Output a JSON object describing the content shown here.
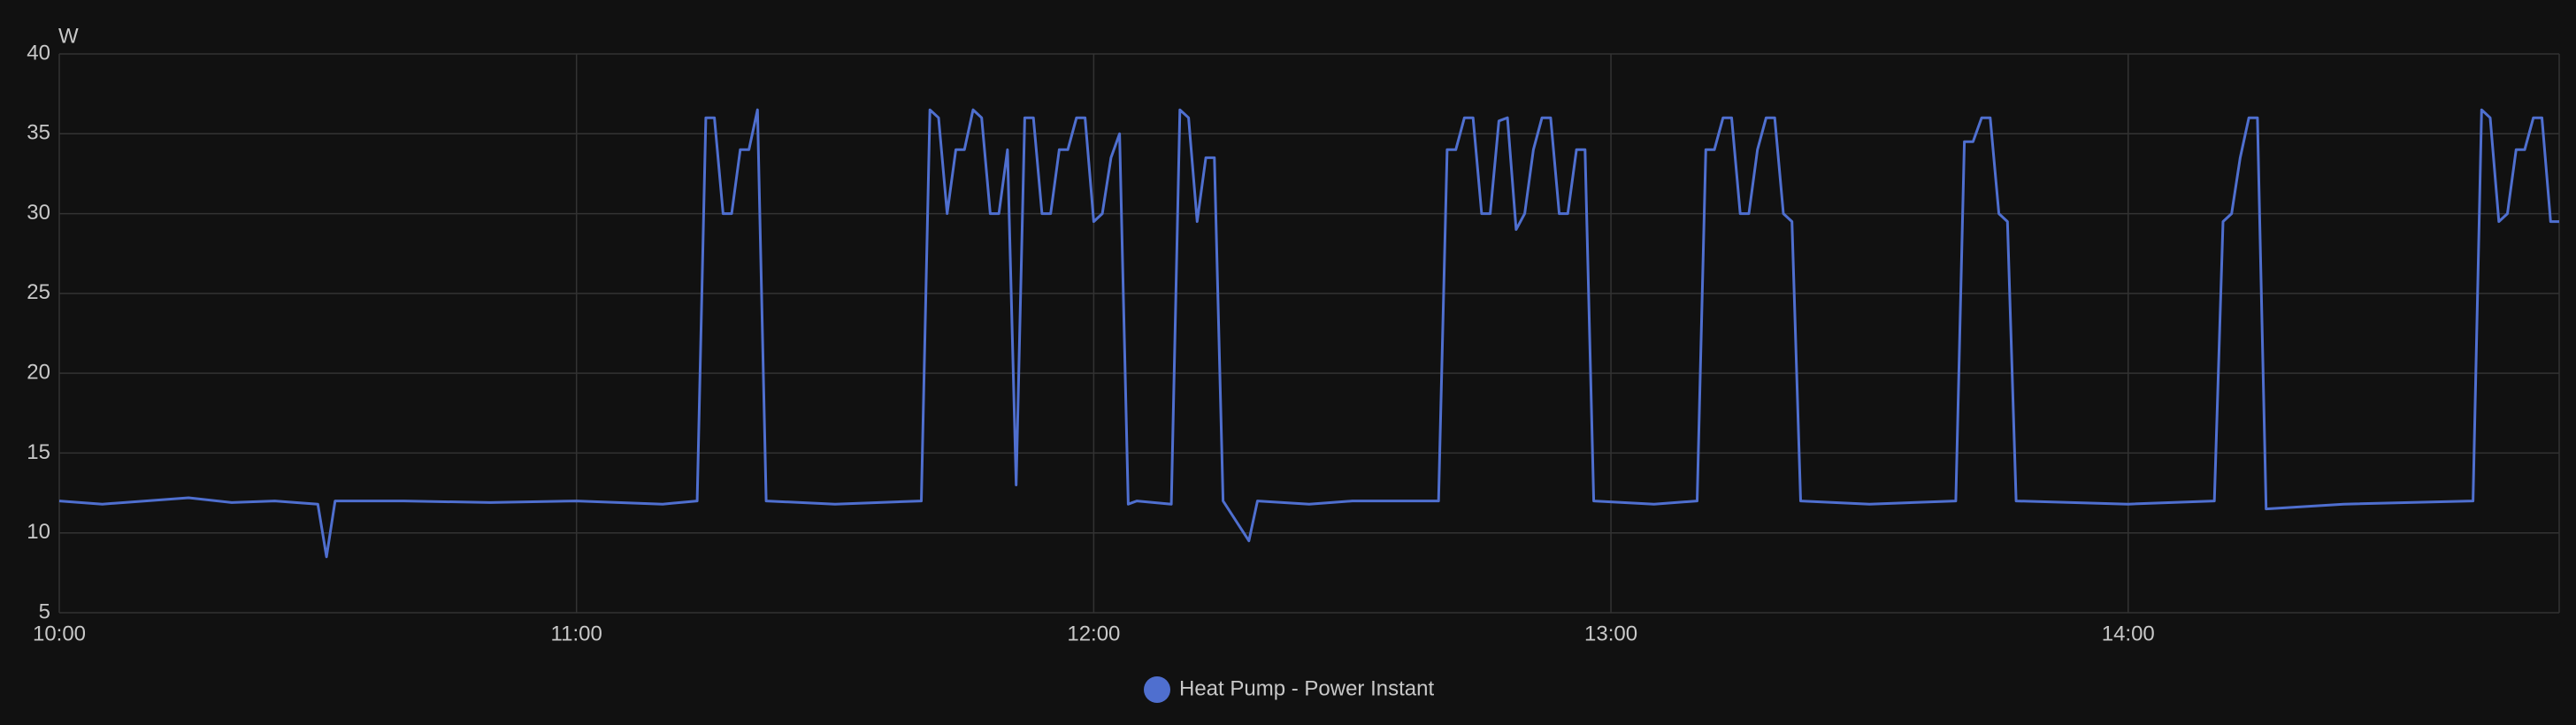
{
  "chart_data": {
    "type": "line",
    "y_unit": "W",
    "x": [
      "10:00",
      "10:05",
      "10:10",
      "10:15",
      "10:20",
      "10:25",
      "10:30",
      "10:31",
      "10:32",
      "10:40",
      "10:50",
      "11:00",
      "11:10",
      "11:14",
      "11:15",
      "11:16",
      "11:17",
      "11:18",
      "11:19",
      "11:20",
      "11:21",
      "11:22",
      "11:30",
      "11:40",
      "11:41",
      "11:42",
      "11:43",
      "11:44",
      "11:45",
      "11:46",
      "11:47",
      "11:48",
      "11:49",
      "11:50",
      "11:51",
      "11:52",
      "11:53",
      "11:54",
      "11:55",
      "11:56",
      "11:57",
      "11:58",
      "11:59",
      "12:00",
      "12:01",
      "12:02",
      "12:03",
      "12:04",
      "12:05",
      "12:09",
      "12:10",
      "12:11",
      "12:12",
      "12:13",
      "12:14",
      "12:15",
      "12:18",
      "12:19",
      "12:25",
      "12:30",
      "12:40",
      "12:41",
      "12:42",
      "12:43",
      "12:44",
      "12:45",
      "12:46",
      "12:47",
      "12:48",
      "12:49",
      "12:50",
      "12:51",
      "12:52",
      "12:53",
      "12:54",
      "12:55",
      "12:56",
      "12:57",
      "12:58",
      "13:05",
      "13:10",
      "13:11",
      "13:12",
      "13:13",
      "13:14",
      "13:15",
      "13:16",
      "13:17",
      "13:18",
      "13:19",
      "13:20",
      "13:21",
      "13:22",
      "13:30",
      "13:40",
      "13:41",
      "13:42",
      "13:43",
      "13:44",
      "13:45",
      "13:46",
      "13:47",
      "14:00",
      "14:10",
      "14:11",
      "14:12",
      "14:13",
      "14:14",
      "14:15",
      "14:16",
      "14:25",
      "14:40",
      "14:41",
      "14:42",
      "14:43",
      "14:44",
      "14:45",
      "14:46",
      "14:47",
      "14:48",
      "14:49",
      "14:50"
    ],
    "series": [
      {
        "name": "Heat Pump - Power Instant",
        "color": "#4f6fcf",
        "values": [
          12,
          11.8,
          12,
          12.2,
          11.9,
          12,
          11.8,
          8.5,
          12,
          12,
          11.9,
          12,
          11.8,
          12,
          36,
          36,
          30,
          30,
          34,
          34,
          36.5,
          12,
          11.8,
          12,
          36.5,
          36,
          30,
          34,
          34,
          36.5,
          36,
          30,
          30,
          34,
          13,
          36,
          36,
          30,
          30,
          34,
          34,
          36,
          36,
          29.5,
          30,
          33.5,
          35,
          11.8,
          12,
          11.8,
          36.5,
          36,
          29.5,
          33.5,
          33.5,
          12,
          9.5,
          12,
          11.8,
          12,
          12,
          34,
          34,
          36,
          36,
          30,
          30,
          35.8,
          36,
          29,
          30,
          34,
          36,
          36,
          30,
          30,
          34,
          34,
          12,
          11.8,
          12,
          34,
          34,
          36,
          36,
          30,
          30,
          34,
          36,
          36,
          30,
          29.5,
          12,
          11.8,
          12,
          34.5,
          34.5,
          36,
          36,
          30,
          29.5,
          12,
          11.8,
          12,
          29.5,
          30,
          33.5,
          36,
          36,
          11.5,
          11.8,
          12,
          36.5,
          36,
          29.5,
          30,
          34,
          34,
          36,
          36,
          29.5,
          29.5
        ]
      }
    ],
    "xlim": [
      "10:00",
      "14:50"
    ],
    "xticks": [
      "10:00",
      "11:00",
      "12:00",
      "13:00",
      "14:00"
    ],
    "ylim": [
      5,
      40
    ],
    "yticks": [
      5,
      10,
      15,
      20,
      25,
      30,
      35,
      40
    ],
    "grid": true,
    "legend": "bottom"
  }
}
